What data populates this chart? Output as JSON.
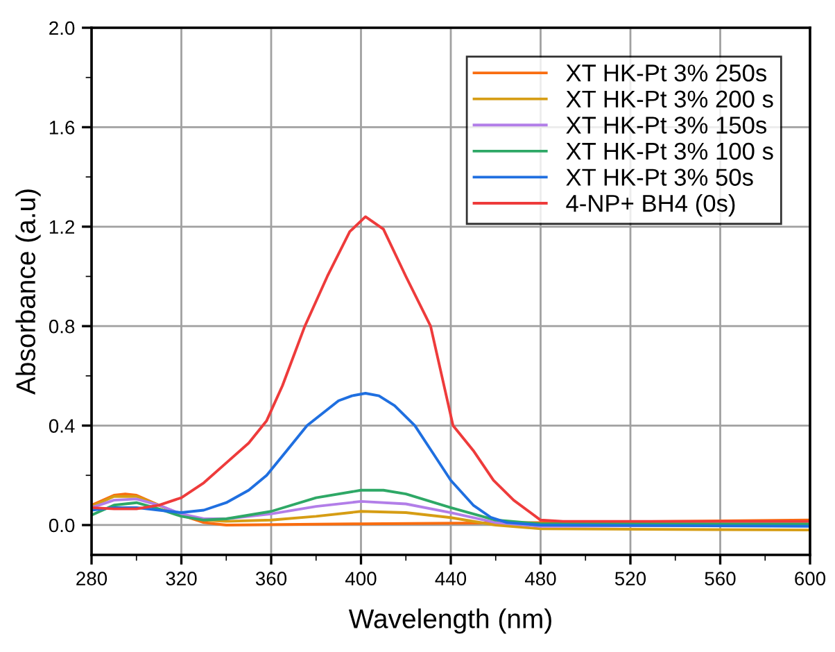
{
  "chart_data": {
    "type": "line",
    "xlabel": "Wavelength (nm)",
    "ylabel": "Absorbance (a.u)",
    "xlim": [
      280,
      600
    ],
    "xticks": [
      280,
      320,
      360,
      400,
      440,
      480,
      520,
      560,
      600
    ],
    "ylim": [
      -0.12,
      2.0
    ],
    "yticks": [
      {
        "value": 0,
        "label": "0.0"
      },
      {
        "value": 0.4,
        "label": "0.4"
      },
      {
        "value": 0.8,
        "label": "0.8"
      },
      {
        "value": 1.2,
        "label": "1.2"
      },
      {
        "value": 1.6,
        "label": "1.6"
      },
      {
        "value": 2.0,
        "label": "2.0"
      }
    ],
    "grid": true,
    "legend": "top right",
    "marker": "none",
    "line_style": "solid",
    "series": [
      {
        "name": "XT HK-Pt 3% 250s",
        "color": "#f96d10",
        "x": [
          280,
          290,
          295,
          300,
          310,
          320,
          330,
          340,
          400,
          480,
          600
        ],
        "values": [
          0.08,
          0.12,
          0.125,
          0.12,
          0.08,
          0.04,
          0.01,
          0.0,
          0.005,
          0.01,
          0.02
        ]
      },
      {
        "name": "XT HK-Pt 3% 200 s",
        "color": "#d69d14",
        "x": [
          280,
          290,
          300,
          310,
          320,
          330,
          340,
          360,
          380,
          400,
          420,
          440,
          460,
          480,
          600
        ],
        "values": [
          0.075,
          0.115,
          0.115,
          0.08,
          0.04,
          0.02,
          0.015,
          0.02,
          0.035,
          0.055,
          0.05,
          0.03,
          0.0,
          -0.015,
          -0.02
        ]
      },
      {
        "name": "XT HK-Pt 3% 150s",
        "color": "#b27ee8",
        "x": [
          280,
          290,
          300,
          310,
          320,
          330,
          340,
          360,
          380,
          400,
          420,
          440,
          460,
          480,
          600
        ],
        "values": [
          0.07,
          0.1,
          0.105,
          0.08,
          0.045,
          0.025,
          0.025,
          0.045,
          0.075,
          0.095,
          0.085,
          0.05,
          0.01,
          -0.005,
          0.0
        ]
      },
      {
        "name": "XT HK-Pt 3% 100 s",
        "color": "#2ea866",
        "x": [
          280,
          290,
          300,
          310,
          320,
          330,
          340,
          360,
          380,
          400,
          410,
          420,
          440,
          460,
          480,
          600
        ],
        "values": [
          0.04,
          0.08,
          0.09,
          0.065,
          0.035,
          0.02,
          0.025,
          0.055,
          0.11,
          0.14,
          0.14,
          0.125,
          0.07,
          0.02,
          0.005,
          0.005
        ]
      },
      {
        "name": "XT HK-Pt 3% 50s",
        "color": "#1f6fe0",
        "x": [
          280,
          290,
          300,
          310,
          320,
          330,
          340,
          350,
          358,
          367,
          376,
          390,
          396,
          402,
          408,
          415,
          424,
          432,
          440,
          450,
          458,
          465,
          480,
          600
        ],
        "values": [
          0.06,
          0.07,
          0.07,
          0.06,
          0.05,
          0.06,
          0.09,
          0.14,
          0.2,
          0.3,
          0.4,
          0.5,
          0.52,
          0.53,
          0.52,
          0.48,
          0.4,
          0.29,
          0.18,
          0.08,
          0.03,
          0.01,
          0.0,
          -0.005
        ]
      },
      {
        "name": "4-NP+ BH4 (0s)",
        "color": "#ee3b3b",
        "x": [
          280,
          290,
          300,
          310,
          320,
          330,
          340,
          350,
          358,
          365,
          375,
          385,
          395,
          402,
          410,
          420,
          431,
          436,
          441,
          450,
          459,
          468,
          480,
          490,
          600
        ],
        "values": [
          0.07,
          0.065,
          0.065,
          0.08,
          0.11,
          0.17,
          0.25,
          0.33,
          0.42,
          0.56,
          0.8,
          1.0,
          1.18,
          1.24,
          1.19,
          1.0,
          0.8,
          0.6,
          0.4,
          0.3,
          0.18,
          0.1,
          0.02,
          0.015,
          0.015
        ]
      }
    ]
  }
}
